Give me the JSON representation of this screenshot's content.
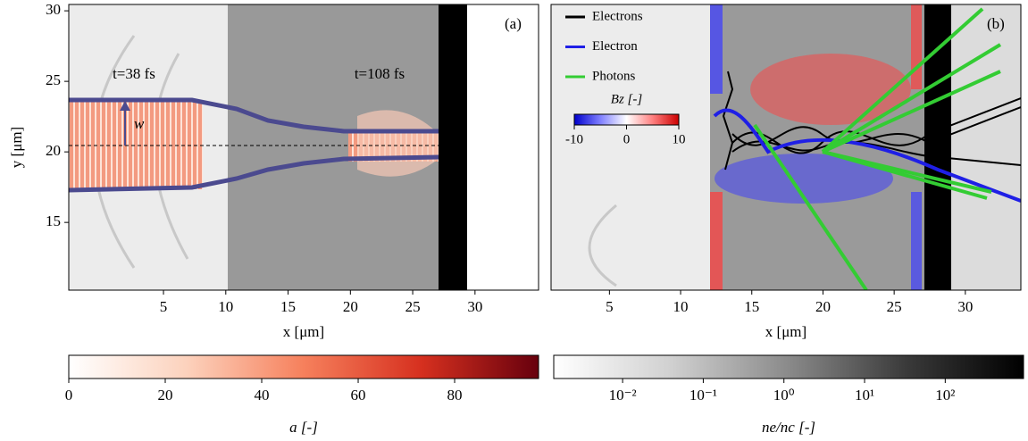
{
  "chart_data": [
    {
      "type": "heatmap",
      "xlabel": "x [μm]",
      "ylabel": "y [μm]",
      "xlim": [
        -2.6,
        35.1
      ],
      "xticks": [
        5,
        10,
        15,
        20,
        25,
        30
      ],
      "ylim": [
        10.2,
        30.45
      ],
      "yticks": [
        15,
        20,
        25,
        30
      ],
      "annotations": [
        "(a)",
        "t=38 fs",
        "t=108 fs",
        "w"
      ]
    },
    {
      "type": "heatmap",
      "xlabel": "x [μm]",
      "xlim": [
        0.9,
        33.9
      ],
      "xticks": [
        5,
        10,
        15,
        20,
        25,
        30
      ],
      "ylim": [
        10.2,
        30.45
      ],
      "annotations": [
        "(b)"
      ],
      "series": [
        {
          "name": "Electrons",
          "color": "#000000"
        },
        {
          "name": "Electron",
          "color": "#1f1fe6"
        },
        {
          "name": "Photons",
          "color": "#33cc33"
        }
      ]
    },
    {
      "type": "colorbar",
      "xlabel": "a [-]",
      "xlim": [
        0,
        97.4
      ],
      "xticks": [
        0,
        20,
        40,
        60,
        80
      ],
      "colors": [
        "#ffffff",
        "#fcd2bd",
        "#f6805c",
        "#d6301f",
        "#67000d"
      ]
    },
    {
      "type": "colorbar",
      "xlabel": "ne/nc [-]",
      "log": true,
      "xlim": [
        0.0014,
        935
      ],
      "xticks": [
        {
          "value": 0.01,
          "label": "10⁻²"
        },
        {
          "value": 0.1,
          "label": "10⁻¹"
        },
        {
          "value": 1,
          "label": "10⁰"
        },
        {
          "value": 10,
          "label": "10¹"
        },
        {
          "value": 100,
          "label": "10²"
        }
      ],
      "colors": [
        "#ffffff",
        "#d0d0d0",
        "#8a8a8a",
        "#3a3a3a",
        "#000000"
      ]
    },
    {
      "type": "colorbar",
      "title": "Bz [-]",
      "xlim": [
        -10,
        10
      ],
      "xticks": [
        -10,
        0,
        10
      ],
      "colors": [
        "#0000cc",
        "#8080ff",
        "#ffffff",
        "#ff8080",
        "#cc0000"
      ]
    }
  ]
}
